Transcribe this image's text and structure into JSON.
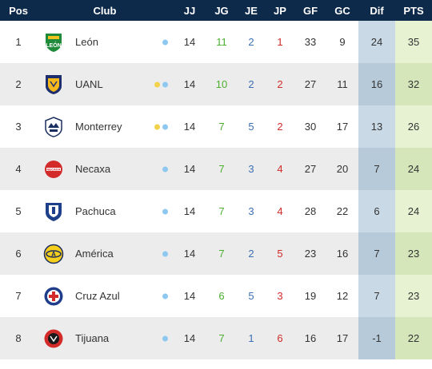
{
  "headers": {
    "pos": "Pos",
    "club": "Club",
    "jj": "JJ",
    "jg": "JG",
    "je": "JE",
    "jp": "JP",
    "gf": "GF",
    "gc": "GC",
    "dif": "Dif",
    "pts": "PTS"
  },
  "colors": {
    "header_bg": "#0e2a4a",
    "dot_blue": "#8ec8f0",
    "dot_yellow": "#f2d24a",
    "jg": "#4caf2f",
    "je": "#3c6fb3",
    "jp": "#d22a2a"
  },
  "rows": [
    {
      "pos": "1",
      "club": "León",
      "crest": "leon-crest-icon",
      "dots": [
        "blue"
      ],
      "jj": "14",
      "jg": "11",
      "je": "2",
      "jp": "1",
      "gf": "33",
      "gc": "9",
      "dif": "24",
      "pts": "35"
    },
    {
      "pos": "2",
      "club": "UANL",
      "crest": "uanl-crest-icon",
      "dots": [
        "yellow",
        "blue"
      ],
      "jj": "14",
      "jg": "10",
      "je": "2",
      "jp": "2",
      "gf": "27",
      "gc": "11",
      "dif": "16",
      "pts": "32"
    },
    {
      "pos": "3",
      "club": "Monterrey",
      "crest": "monterrey-crest-icon",
      "dots": [
        "yellow",
        "blue"
      ],
      "jj": "14",
      "jg": "7",
      "je": "5",
      "jp": "2",
      "gf": "30",
      "gc": "17",
      "dif": "13",
      "pts": "26"
    },
    {
      "pos": "4",
      "club": "Necaxa",
      "crest": "necaxa-crest-icon",
      "dots": [
        "blue"
      ],
      "jj": "14",
      "jg": "7",
      "je": "3",
      "jp": "4",
      "gf": "27",
      "gc": "20",
      "dif": "7",
      "pts": "24"
    },
    {
      "pos": "5",
      "club": "Pachuca",
      "crest": "pachuca-crest-icon",
      "dots": [
        "blue"
      ],
      "jj": "14",
      "jg": "7",
      "je": "3",
      "jp": "4",
      "gf": "28",
      "gc": "22",
      "dif": "6",
      "pts": "24"
    },
    {
      "pos": "6",
      "club": "América",
      "crest": "america-crest-icon",
      "dots": [
        "blue"
      ],
      "jj": "14",
      "jg": "7",
      "je": "2",
      "jp": "5",
      "gf": "23",
      "gc": "16",
      "dif": "7",
      "pts": "23"
    },
    {
      "pos": "7",
      "club": "Cruz Azul",
      "crest": "cruz-azul-crest-icon",
      "dots": [
        "blue"
      ],
      "jj": "14",
      "jg": "6",
      "je": "5",
      "jp": "3",
      "gf": "19",
      "gc": "12",
      "dif": "7",
      "pts": "23"
    },
    {
      "pos": "8",
      "club": "Tijuana",
      "crest": "tijuana-crest-icon",
      "dots": [
        "blue"
      ],
      "jj": "14",
      "jg": "7",
      "je": "1",
      "jp": "6",
      "gf": "16",
      "gc": "17",
      "dif": "-1",
      "pts": "22"
    }
  ]
}
